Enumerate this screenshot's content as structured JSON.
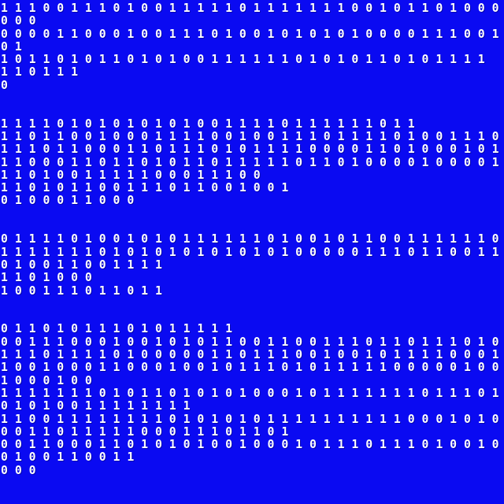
{
  "screen": {
    "background_color": "#0a0af2",
    "text_color": "#ffffff",
    "content_kind": "binary-dump",
    "paragraphs": [
      {
        "lines": [
          "111001110100111110111111100101101000",
          "000",
          "000011000100111010010101010000111001",
          "01",
          "10110101101010011111101010110101111",
          "110111",
          "0"
        ]
      },
      {
        "lines": [
          "111101010101010011110111111011",
          "110110010001111001001110111101001110",
          "111011000110111010111100001101000101",
          "110001101101011011111011010000100001",
          "1101001111100011100",
          "110101100111011001001",
          "0100011000"
        ]
      },
      {
        "lines": [
          "011110100101011111101001011001111110",
          "111111101010101010101000001110110011",
          "010011001111",
          "1101000",
          "100111011011"
        ]
      },
      {
        "lines": [
          "01101011101011111",
          "001110001001010110011001110110111010",
          "111011110100000110111001001011110001",
          "100100011000100101110101111100000100",
          "1000100",
          "111111101011010101000101111111011101",
          "01010011111111",
          "110011111111010101011111111110001010",
          "001101111100011101101",
          "001100011010101001000101110111010010",
          "0100110011",
          "000"
        ]
      }
    ]
  }
}
